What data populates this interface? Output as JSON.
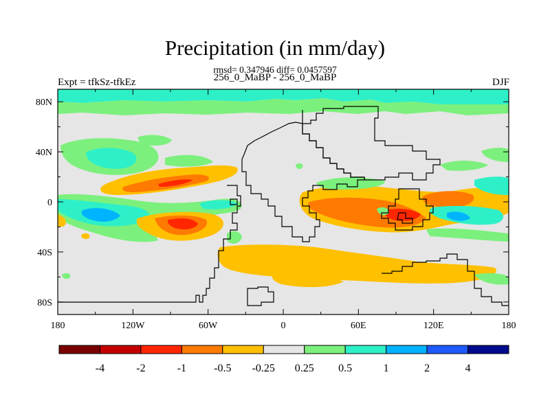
{
  "header": {
    "title": "Precipitation (in mm/day)",
    "stats": "rmsd= 0.347946 diff= 0.0457597",
    "case": "256_0_MaBP - 256_0_MaBP",
    "expt": "Expt = tfkSz-tfkEz",
    "season": "DJF"
  },
  "chart_data": {
    "type": "heatmap",
    "title": "Precipitation (in mm/day)",
    "x_ticks": [
      "180",
      "120W",
      "60W",
      "0",
      "60E",
      "120E",
      "180"
    ],
    "y_ticks": [
      "80N",
      "40N",
      "0",
      "40S",
      "80S"
    ],
    "xlim": [
      -180,
      180
    ],
    "ylim": [
      -90,
      90
    ],
    "colorbar": {
      "labels": [
        "-4",
        "-2",
        "-1",
        "-0.5",
        "-0.25",
        "0.25",
        "0.5",
        "1",
        "2",
        "4"
      ],
      "colors": [
        "#7a0000",
        "#c40000",
        "#ff2600",
        "#ff7a00",
        "#ffc000",
        "#e6e6e6",
        "#7cf07c",
        "#2ef0c8",
        "#00b4ff",
        "#1e5aff",
        "#000a8c"
      ]
    },
    "regions": [
      {
        "level": "0.5 to 1",
        "lon": [
          -180,
          180
        ],
        "lat": [
          70,
          90
        ]
      },
      {
        "level": "0.25 to 0.5",
        "lon": [
          -180,
          180
        ],
        "lat": [
          63,
          72
        ]
      },
      {
        "level": "-0.5 to -0.25",
        "lon": [
          -130,
          -40
        ],
        "lat": [
          10,
          30
        ]
      },
      {
        "level": "-2 to -0.5",
        "lon": [
          -80,
          -45
        ],
        "lat": [
          -25,
          -10
        ]
      },
      {
        "level": "-1 to -0.25",
        "lon": [
          20,
          120
        ],
        "lat": [
          -25,
          0
        ]
      },
      {
        "level": "-0.5 to -0.25",
        "lon": [
          115,
          150
        ],
        "lat": [
          -15,
          5
        ]
      },
      {
        "level": "0.5 to 2",
        "lon": [
          -180,
          -60
        ],
        "lat": [
          -20,
          0
        ]
      },
      {
        "level": "-0.5 to -0.25",
        "lon": [
          -45,
          140
        ],
        "lat": [
          -70,
          -35
        ]
      }
    ]
  }
}
